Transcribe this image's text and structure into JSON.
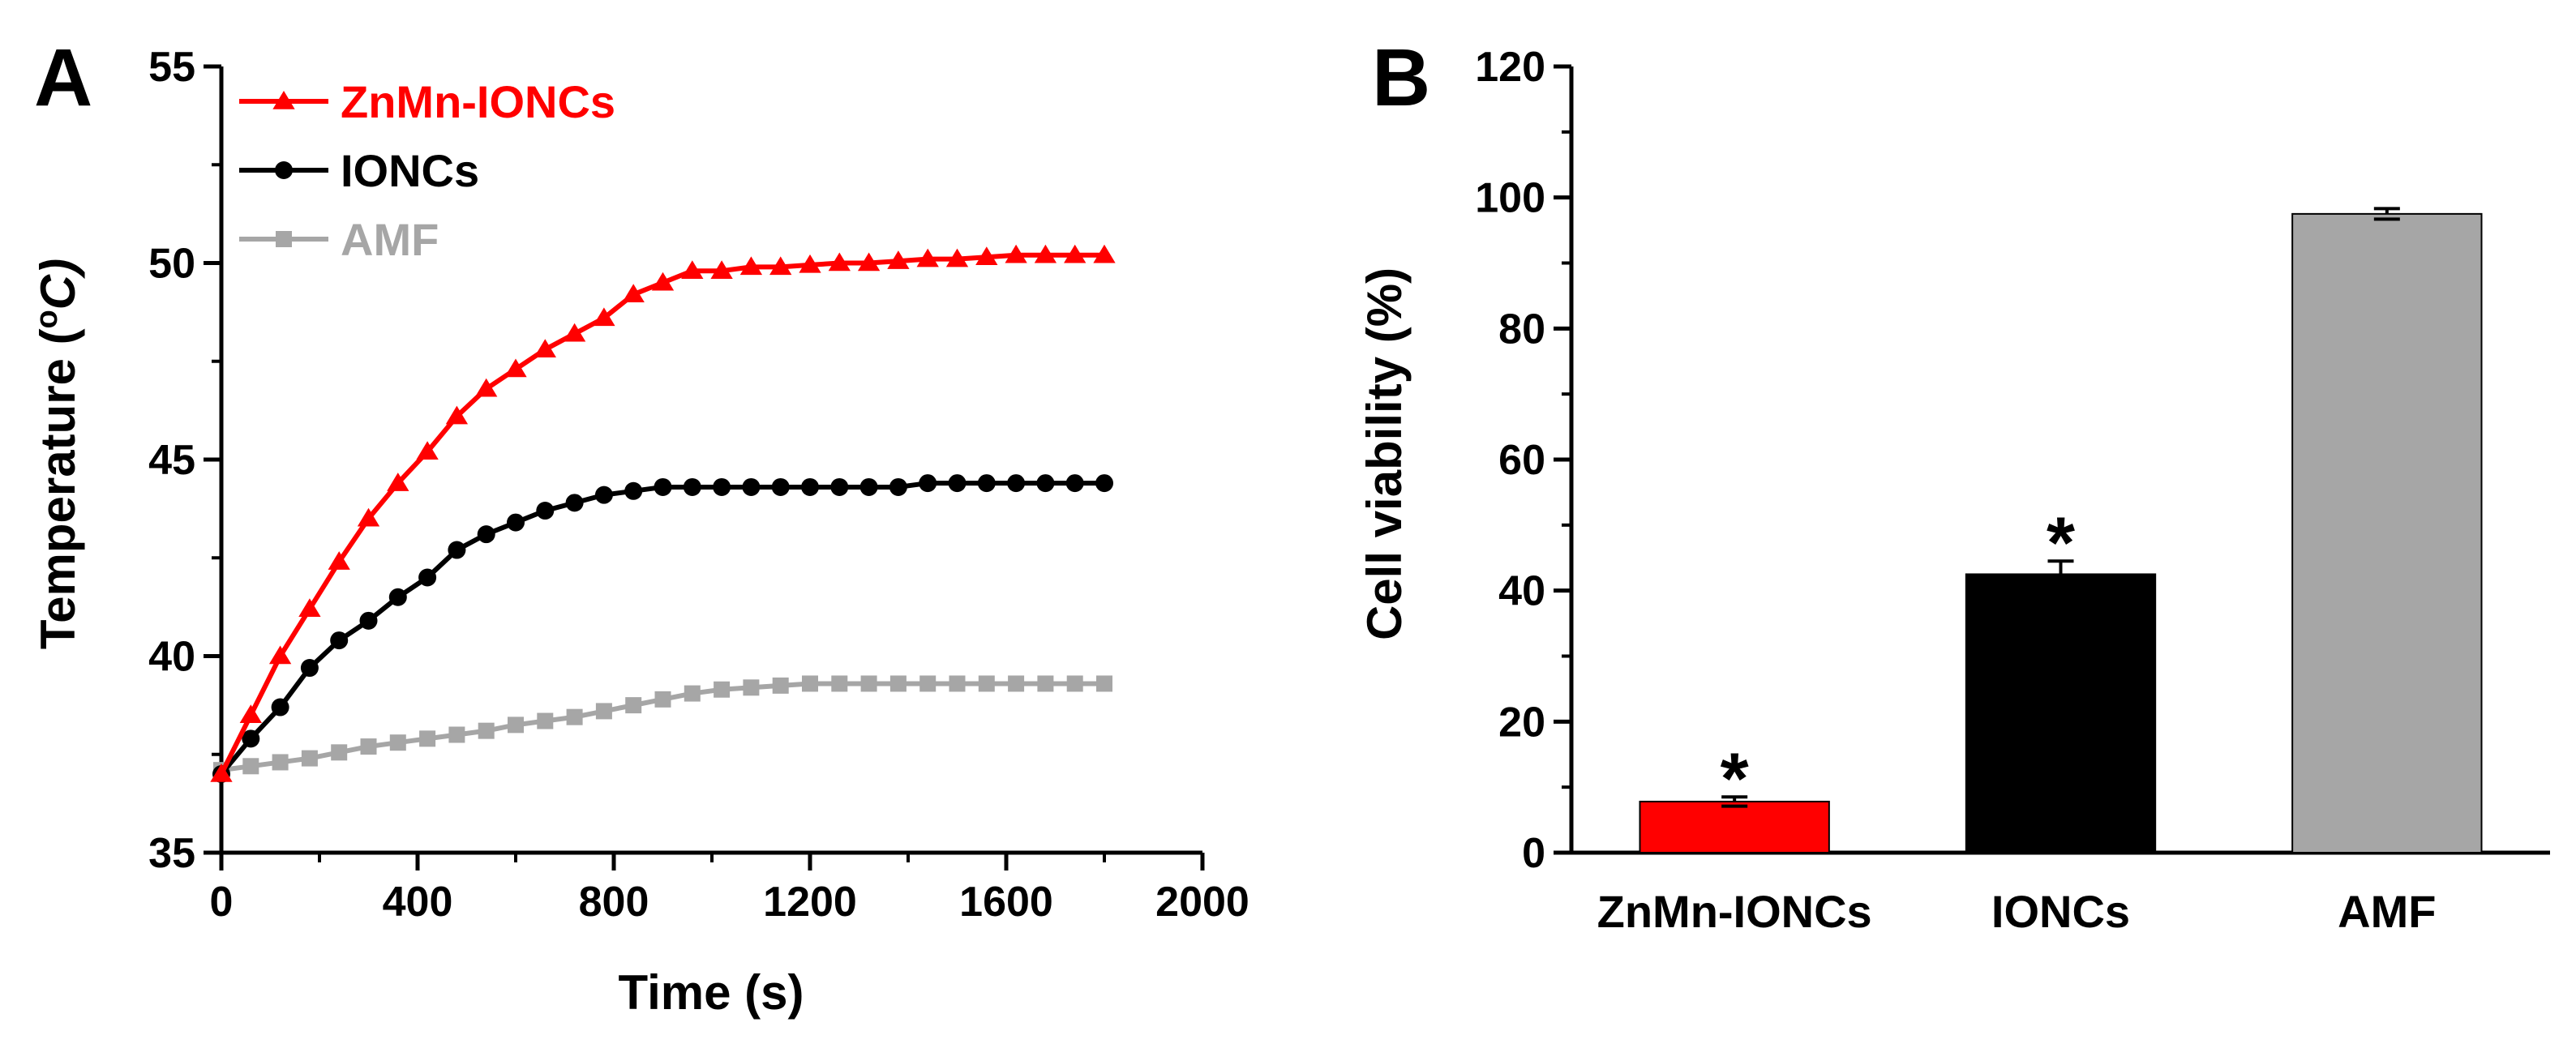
{
  "chart_data": [
    {
      "type": "line",
      "panel_label": "A",
      "xlabel": "Time (s)",
      "ylabel_base": "Temperature (",
      "ylabel_sup": "o",
      "ylabel_unit": "C)",
      "xlim": [
        0,
        2000
      ],
      "ylim": [
        35,
        55
      ],
      "x_ticks": [
        0,
        400,
        800,
        1200,
        1600,
        2000
      ],
      "x_tick_labels": [
        "0",
        "400",
        "800",
        "1200",
        "1600",
        "2000"
      ],
      "y_ticks": [
        35,
        40,
        45,
        50,
        55
      ],
      "y_tick_labels": [
        "35",
        "40",
        "45",
        "50",
        "55"
      ],
      "grid": false,
      "legend_position": "top-left",
      "x": [
        0,
        60,
        120,
        180,
        240,
        300,
        360,
        420,
        480,
        540,
        600,
        660,
        720,
        780,
        840,
        900,
        960,
        1020,
        1080,
        1140,
        1200,
        1260,
        1320,
        1380,
        1440,
        1500,
        1560,
        1620,
        1680,
        1740,
        1800
      ],
      "series": [
        {
          "name": "ZnMn-IONCs",
          "color": "#ff0000",
          "marker": "triangle",
          "values": [
            37.0,
            38.5,
            40.0,
            41.2,
            42.4,
            43.5,
            44.4,
            45.2,
            46.1,
            46.8,
            47.3,
            47.8,
            48.2,
            48.6,
            49.2,
            49.5,
            49.8,
            49.8,
            49.9,
            49.9,
            49.95,
            50.0,
            50.0,
            50.05,
            50.1,
            50.1,
            50.15,
            50.2,
            50.2,
            50.2,
            50.2
          ]
        },
        {
          "name": "IONCs",
          "color": "#000000",
          "marker": "circle",
          "values": [
            37.0,
            37.9,
            38.7,
            39.7,
            40.4,
            40.9,
            41.5,
            42.0,
            42.7,
            43.1,
            43.4,
            43.7,
            43.9,
            44.1,
            44.2,
            44.3,
            44.3,
            44.3,
            44.3,
            44.3,
            44.3,
            44.3,
            44.3,
            44.3,
            44.4,
            44.4,
            44.4,
            44.4,
            44.4,
            44.4,
            44.4
          ]
        },
        {
          "name": "AMF",
          "color": "#a6a6a6",
          "marker": "square",
          "values": [
            37.1,
            37.2,
            37.3,
            37.4,
            37.55,
            37.7,
            37.8,
            37.9,
            38.0,
            38.1,
            38.25,
            38.35,
            38.45,
            38.6,
            38.75,
            38.9,
            39.05,
            39.15,
            39.2,
            39.25,
            39.3,
            39.3,
            39.3,
            39.3,
            39.3,
            39.3,
            39.3,
            39.3,
            39.3,
            39.3,
            39.3
          ]
        }
      ]
    },
    {
      "type": "bar",
      "panel_label": "B",
      "ylabel": "Cell viability (%)",
      "xlabel": "",
      "categories": [
        "ZnMn-IONCs",
        "IONCs",
        "AMF"
      ],
      "values": [
        7.8,
        42.5,
        97.5
      ],
      "errors": [
        0.7,
        2.0,
        0.8
      ],
      "colors": [
        "#ff0000",
        "#000000",
        "#a6a6a6"
      ],
      "significance": [
        "*",
        "*",
        ""
      ],
      "ylim": [
        0,
        120
      ],
      "y_ticks": [
        0,
        20,
        40,
        60,
        80,
        100,
        120
      ],
      "y_tick_labels": [
        "0",
        "20",
        "40",
        "60",
        "80",
        "100",
        "120"
      ],
      "grid": false
    }
  ]
}
